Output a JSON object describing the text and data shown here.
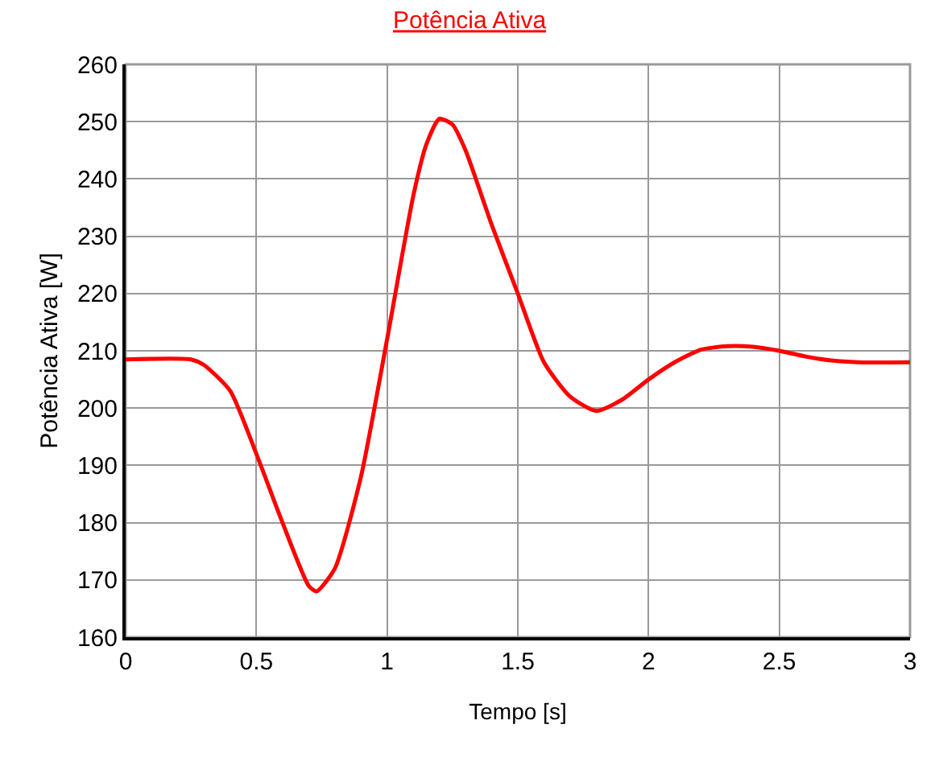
{
  "chart_data": {
    "type": "line",
    "title": "Potência Ativa",
    "xlabel": "Tempo [s]",
    "ylabel": "Potência Ativa [W]",
    "x": [
      0,
      0.25,
      0.3,
      0.4,
      0.5,
      0.6,
      0.7,
      0.73,
      0.8,
      0.9,
      1.0,
      1.1,
      1.15,
      1.2,
      1.25,
      1.3,
      1.4,
      1.5,
      1.6,
      1.7,
      1.8,
      1.9,
      2.0,
      2.1,
      2.2,
      2.3,
      2.4,
      2.5,
      2.6,
      2.7,
      2.8,
      3.0
    ],
    "series": [
      {
        "color": "#ff0000",
        "values": [
          208.5,
          208.5,
          207.5,
          203,
          192,
          180,
          169,
          168,
          172,
          188,
          212,
          237,
          246,
          250.5,
          249.5,
          245,
          232,
          220,
          208,
          202,
          199.5,
          201.5,
          205,
          208,
          210.2,
          210.8,
          210.7,
          210,
          209,
          208.3,
          208,
          208
        ]
      }
    ],
    "xlim": [
      0,
      3
    ],
    "xticks": [
      0,
      0.5,
      1,
      1.5,
      2,
      2.5,
      3
    ],
    "ylim": [
      160,
      260
    ],
    "yticks": [
      160,
      170,
      180,
      190,
      200,
      210,
      220,
      230,
      240,
      250,
      260
    ],
    "grid": true,
    "legend": false,
    "marker": "none",
    "line_style": "solid"
  }
}
